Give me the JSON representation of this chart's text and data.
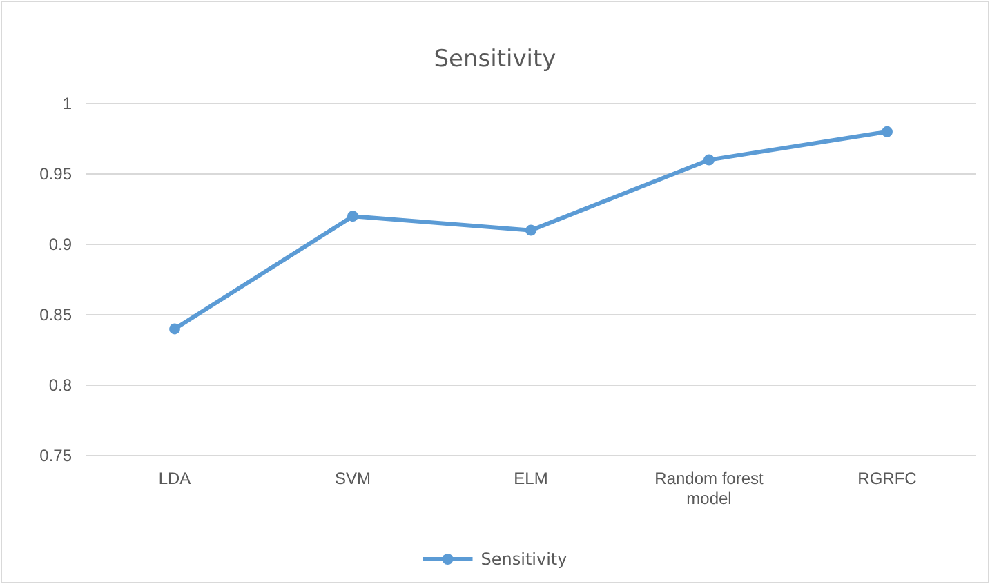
{
  "chart_data": {
    "type": "line",
    "title": "Sensitivity",
    "categories": [
      "LDA",
      "SVM",
      "ELM",
      "Random forest model",
      "RGRFC"
    ],
    "series": [
      {
        "name": "Sensitivity",
        "color": "#5b9bd5",
        "values": [
          0.84,
          0.92,
          0.91,
          0.96,
          0.98
        ]
      }
    ],
    "ylim": [
      0.75,
      1
    ],
    "yticks": [
      0.75,
      0.8,
      0.85,
      0.9,
      0.95,
      1
    ],
    "grid": "y",
    "legend": "bottom",
    "marker": "circle",
    "line_style": "solid"
  }
}
